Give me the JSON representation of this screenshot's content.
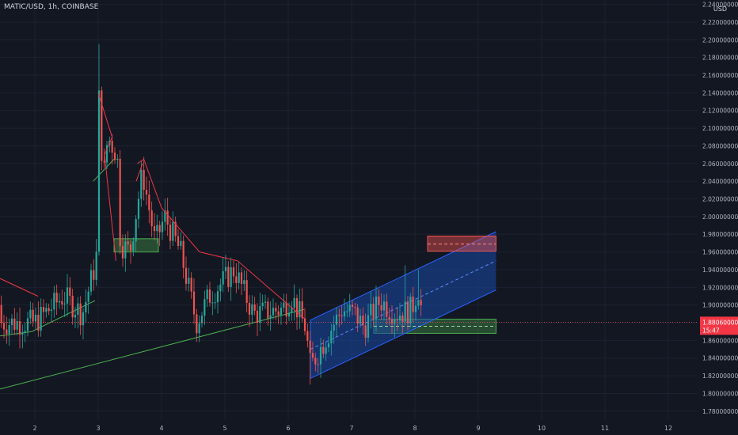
{
  "header": {
    "symbol": "MATIC/USD, 1h, COINBASE",
    "currency": "USD"
  },
  "colors": {
    "background": "#131722",
    "grid": "#1e2230",
    "up": "#26a69a",
    "down": "#ef5350",
    "trendline_red": "#f23645",
    "trendline_green": "#4caf50",
    "channel_fill": "#1848a8",
    "channel_line": "#2962ff",
    "current_price_box": "#f23645"
  },
  "chart_data": {
    "type": "candlestick",
    "symbol": "MATIC/USD",
    "interval": "1h",
    "exchange": "COINBASE",
    "ylim": [
      1.77,
      2.245
    ],
    "xlim": [
      1.45,
      12.45
    ],
    "x_ticks": [
      2,
      3,
      4,
      5,
      6,
      7,
      8,
      9,
      10,
      11,
      12
    ],
    "x_tick_labels": [
      "2",
      "3",
      "4",
      "5",
      "6",
      "7",
      "8",
      "9",
      "10",
      "11",
      "12"
    ],
    "y_ticks": [
      1.78,
      1.8,
      1.82,
      1.84,
      1.86,
      1.88,
      1.9,
      1.92,
      1.94,
      1.96,
      1.98,
      2.0,
      2.02,
      2.04,
      2.06,
      2.08,
      2.1,
      2.12,
      2.14,
      2.16,
      2.18,
      2.2,
      2.22,
      2.24
    ],
    "y_tick_labels": [
      "1.78000000",
      "1.80000000",
      "1.82000000",
      "1.84000000",
      "1.86000000",
      "1.88000000",
      "1.90000000",
      "1.92000000",
      "1.94000000",
      "1.96000000",
      "1.98000000",
      "2.00000000",
      "2.02000000",
      "2.04000000",
      "2.06000000",
      "2.08000000",
      "2.10000000",
      "2.12000000",
      "2.14000000",
      "2.16000000",
      "2.18000000",
      "2.20000000",
      "2.22000000",
      "2.24000000"
    ],
    "grid": true,
    "current_price": 1.8806,
    "current_price_label": "1.88060000",
    "countdown_label": "15:47",
    "key_prices": [
      {
        "x": 2.0,
        "price": 1.88
      },
      {
        "x": 2.45,
        "price": 1.91
      },
      {
        "x": 2.75,
        "price": 1.89
      },
      {
        "x": 2.97,
        "price": 1.95
      },
      {
        "x": 3.0,
        "price": 2.15
      },
      {
        "x": 3.08,
        "price": 2.04
      },
      {
        "x": 3.15,
        "price": 2.09
      },
      {
        "x": 3.3,
        "price": 2.07
      },
      {
        "x": 3.35,
        "price": 1.97
      },
      {
        "x": 3.5,
        "price": 1.96
      },
      {
        "x": 3.7,
        "price": 2.05
      },
      {
        "x": 3.9,
        "price": 1.97
      },
      {
        "x": 4.05,
        "price": 2.0
      },
      {
        "x": 4.3,
        "price": 1.96
      },
      {
        "x": 4.55,
        "price": 1.88
      },
      {
        "x": 4.75,
        "price": 1.91
      },
      {
        "x": 5.15,
        "price": 1.94
      },
      {
        "x": 5.45,
        "price": 1.89
      },
      {
        "x": 5.9,
        "price": 1.895
      },
      {
        "x": 6.05,
        "price": 1.91
      },
      {
        "x": 6.27,
        "price": 1.875
      },
      {
        "x": 6.35,
        "price": 1.83
      },
      {
        "x": 6.65,
        "price": 1.87
      },
      {
        "x": 6.85,
        "price": 1.895
      },
      {
        "x": 7.05,
        "price": 1.89
      },
      {
        "x": 7.2,
        "price": 1.875
      },
      {
        "x": 7.45,
        "price": 1.905
      },
      {
        "x": 7.7,
        "price": 1.89
      },
      {
        "x": 7.95,
        "price": 1.895
      },
      {
        "x": 8.05,
        "price": 1.92
      },
      {
        "x": 8.12,
        "price": 1.886
      }
    ],
    "drawings": {
      "red_trendlines": [
        [
          [
            1.45,
            1.93
          ],
          [
            2.05,
            1.91
          ]
        ],
        [
          [
            3.0,
            2.14
          ],
          [
            3.22,
            2.09
          ],
          [
            3.1,
            2.07
          ],
          [
            3.28,
            1.95
          ]
        ],
        [
          [
            3.62,
            2.06
          ],
          [
            3.72,
            2.065
          ],
          [
            4.0,
            2.01
          ],
          [
            4.6,
            1.96
          ],
          [
            5.2,
            1.95
          ],
          [
            6.25,
            1.885
          ]
        ],
        [
          [
            3.7,
            2.06
          ],
          [
            3.6,
            2.04
          ]
        ]
      ],
      "green_trendlines": [
        [
          [
            1.45,
            1.805
          ],
          [
            6.25,
            1.895
          ]
        ],
        [
          [
            1.45,
            1.865
          ],
          [
            1.95,
            1.87
          ],
          [
            2.95,
            1.905
          ]
        ],
        [
          [
            2.92,
            2.04
          ],
          [
            3.25,
            2.065
          ]
        ]
      ],
      "green_zones": [
        {
          "x": [
            3.25,
            3.95
          ],
          "y": [
            1.96,
            1.975
          ]
        },
        {
          "x": [
            7.35,
            9.28
          ],
          "y": [
            1.868,
            1.884
          ]
        }
      ],
      "red_zone": {
        "x": [
          8.2,
          9.28
        ],
        "y": [
          1.961,
          1.978
        ],
        "mid": 1.969
      },
      "green_zone_mid": 1.876,
      "channel": {
        "upper": [
          [
            6.35,
            1.883
          ],
          [
            9.28,
            1.983
          ]
        ],
        "lower": [
          [
            6.35,
            1.817
          ],
          [
            9.28,
            1.917
          ]
        ],
        "mid": [
          [
            6.35,
            1.85
          ],
          [
            9.28,
            1.95
          ]
        ]
      }
    }
  }
}
